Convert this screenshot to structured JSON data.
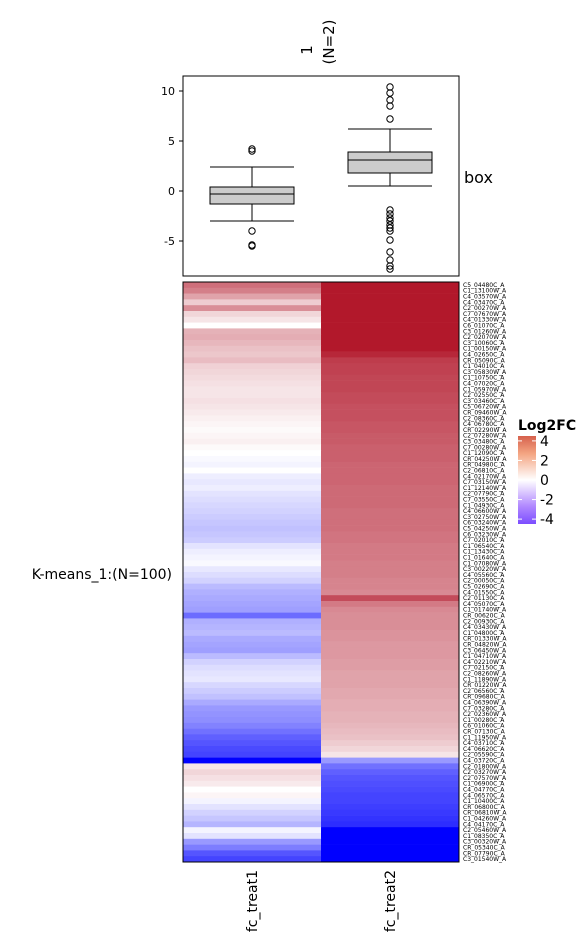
{
  "chart_data": [
    {
      "type": "box",
      "column_title": "1\n(N=2)",
      "row_label": "box",
      "categories": [
        "fc_treat1",
        "fc_treat2"
      ],
      "ylim": [
        -8.5,
        11.5
      ],
      "yticks": [
        10,
        5,
        0,
        -5
      ],
      "boxes": [
        {
          "name": "fc_treat1",
          "q1": -1.3,
          "median": -0.3,
          "q3": 0.4,
          "whisker_low": -3.0,
          "whisker_high": 2.4,
          "outliers": [
            4.2,
            4.0,
            -4.0,
            -5.4,
            -5.5
          ]
        },
        {
          "name": "fc_treat2",
          "q1": 1.8,
          "median": 3.1,
          "q3": 3.9,
          "whisker_low": 0.5,
          "whisker_high": 6.2,
          "outliers": [
            10.4,
            9.8,
            9.1,
            8.5,
            7.2,
            -1.9,
            -2.3,
            -2.7,
            -3.0,
            -3.4,
            -3.7,
            -4.0,
            -4.9,
            -6.1,
            -6.9,
            -7.5,
            -7.8
          ]
        }
      ]
    },
    {
      "type": "heatmap",
      "row_group_label": "K-means_1:(N=100)",
      "columns": [
        "fc_treat1",
        "fc_treat2"
      ],
      "legend": {
        "title": "Log2FC",
        "ticks": [
          4,
          2,
          0,
          -2,
          -4
        ],
        "range": [
          -4.5,
          4.5
        ],
        "high_color": "#B2182B",
        "mid_color": "#FFFFFF",
        "low_color": "#0000FF"
      },
      "rows": [
        "C5_04480C_A",
        "C1_13100W_A",
        "C4_03570W_A",
        "C4_03470C_A",
        "C2_00270W_A",
        "C7_07670W_A",
        "C4_01330W_A",
        "C6_01070C_A",
        "C3_01260W_A",
        "C2_02070W_A",
        "C3_10060C_A",
        "C1_00150W_A",
        "C4_02650C_A",
        "CR_05090C_A",
        "C1_04010C_A",
        "C3_05830W_A",
        "C1_10750C_A",
        "C4_07020C_A",
        "C1_05970W_A",
        "C2_02550C_A",
        "C3_03460C_A",
        "C5_06720W_A",
        "CR_09460W_A",
        "C2_08360C_A",
        "C4_06780C_A",
        "CR_02290W_A",
        "C2_07280W_A",
        "C3_03480C_A",
        "C7_00280W_A",
        "C1_12090C_A",
        "CR_04250W_A",
        "CR_04980C_A",
        "C2_06810C_A",
        "C4_02170W_A",
        "C7_03150W_A",
        "C1_12140W_A",
        "C2_07790C_A",
        "C7_03550C_A",
        "C1_04930C_A",
        "C4_06600W_A",
        "C3_02750W_A",
        "C6_03240W_A",
        "C5_04250W_A",
        "C6_03230W_A",
        "C7_02010C_A",
        "C1_06540C_A",
        "C1_13430C_A",
        "C1_01640C_A",
        "C1_07080W_A",
        "C3_00220W_A",
        "C4_05560C_A",
        "C2_00050C_A",
        "C5_02690C_A",
        "C4_01550C_A",
        "C2_01130C_A",
        "C4_05070C_A",
        "C1_01740W_A",
        "CR_00620C_A",
        "C2_00930C_A",
        "C4_03430W_A",
        "C1_04800C_A",
        "CR_01330W_A",
        "CR_04820W_A",
        "C3_06450W_A",
        "C1_04710W_A",
        "C4_02210W_A",
        "C7_02150C_A",
        "C2_08260W_A",
        "C1_11890W_A",
        "CR_01220W_A",
        "C2_06560C_A",
        "CR_09680C_A",
        "C4_06390W_A",
        "C7_03280C_A",
        "C2_02360W_A",
        "C1_00280C_A",
        "C6_01060C_A",
        "CR_07130C_A",
        "C1_11950W_A",
        "C4_03710C_A",
        "C4_06620C_A",
        "C2_05590C_A",
        "C4_03720C_A",
        "C2_01800W_A",
        "C2_03270W_A",
        "C2_07570W_A",
        "C1_06900C_A",
        "C4_04770C_A",
        "C4_06570C_A",
        "C1_10400C_A",
        "CR_06800C_A",
        "CR_06810W_A",
        "C1_04260W_A",
        "C4_04170C_A",
        "C2_05460W_A",
        "C1_08350C_A",
        "C3_00320W_A",
        "CR_05340C_A",
        "CR_07790C_A",
        "C3_01540W_A"
      ],
      "values": [
        [
          2.8,
          4.5
        ],
        [
          2.5,
          4.5
        ],
        [
          1.8,
          4.5
        ],
        [
          1.0,
          4.5
        ],
        [
          2.2,
          4.5
        ],
        [
          0.8,
          4.5
        ],
        [
          0.5,
          4.5
        ],
        [
          0.0,
          4.5
        ],
        [
          1.5,
          4.5
        ],
        [
          1.6,
          4.5
        ],
        [
          1.4,
          4.5
        ],
        [
          1.2,
          4.5
        ],
        [
          1.1,
          4.2
        ],
        [
          1.3,
          3.8
        ],
        [
          0.9,
          3.7
        ],
        [
          0.8,
          3.7
        ],
        [
          0.7,
          3.6
        ],
        [
          0.6,
          3.6
        ],
        [
          0.5,
          3.6
        ],
        [
          0.5,
          3.5
        ],
        [
          0.6,
          3.5
        ],
        [
          0.5,
          3.4
        ],
        [
          0.4,
          3.4
        ],
        [
          0.3,
          3.4
        ],
        [
          0.2,
          3.3
        ],
        [
          0.1,
          3.3
        ],
        [
          0.2,
          3.2
        ],
        [
          0.3,
          3.2
        ],
        [
          0.1,
          3.1
        ],
        [
          0.0,
          3.1
        ],
        [
          -0.1,
          3.1
        ],
        [
          -0.2,
          3.0
        ],
        [
          0.0,
          3.0
        ],
        [
          -0.3,
          3.0
        ],
        [
          -0.4,
          3.0
        ],
        [
          -0.3,
          2.9
        ],
        [
          -0.5,
          2.9
        ],
        [
          -0.6,
          2.9
        ],
        [
          -0.7,
          2.9
        ],
        [
          -0.8,
          2.8
        ],
        [
          -0.9,
          2.8
        ],
        [
          -1.0,
          2.8
        ],
        [
          -1.1,
          2.8
        ],
        [
          -1.0,
          2.7
        ],
        [
          -0.9,
          2.7
        ],
        [
          -0.5,
          2.6
        ],
        [
          -0.3,
          2.6
        ],
        [
          -0.2,
          2.6
        ],
        [
          -0.1,
          2.5
        ],
        [
          -0.4,
          2.5
        ],
        [
          -0.6,
          2.5
        ],
        [
          -0.8,
          2.4
        ],
        [
          -1.2,
          2.4
        ],
        [
          -1.4,
          2.3
        ],
        [
          -1.5,
          3.5
        ],
        [
          -1.6,
          2.6
        ],
        [
          -1.7,
          2.3
        ],
        [
          -2.6,
          2.2
        ],
        [
          -1.4,
          2.2
        ],
        [
          -1.3,
          2.2
        ],
        [
          -1.2,
          2.1
        ],
        [
          -1.5,
          2.1
        ],
        [
          -1.6,
          2.0
        ],
        [
          -1.7,
          2.0
        ],
        [
          -1.2,
          2.0
        ],
        [
          -0.8,
          1.9
        ],
        [
          -0.6,
          1.9
        ],
        [
          -0.5,
          1.8
        ],
        [
          -0.4,
          1.8
        ],
        [
          -0.7,
          1.8
        ],
        [
          -0.9,
          1.7
        ],
        [
          -1.1,
          1.7
        ],
        [
          -1.5,
          1.6
        ],
        [
          -1.8,
          1.6
        ],
        [
          -1.9,
          1.5
        ],
        [
          -2.0,
          1.5
        ],
        [
          -2.2,
          1.4
        ],
        [
          -2.5,
          1.3
        ],
        [
          -2.8,
          1.2
        ],
        [
          -3.0,
          1.0
        ],
        [
          -3.2,
          0.8
        ],
        [
          -3.3,
          0.5
        ],
        [
          -4.5,
          -1.8
        ],
        [
          0.5,
          -2.5
        ],
        [
          0.8,
          -2.8
        ],
        [
          0.6,
          -3.0
        ],
        [
          0.4,
          -3.1
        ],
        [
          0.0,
          -3.2
        ],
        [
          0.2,
          -3.3
        ],
        [
          -0.2,
          -3.3
        ],
        [
          -0.5,
          -3.4
        ],
        [
          -0.8,
          -3.5
        ],
        [
          -1.0,
          -3.6
        ],
        [
          -1.3,
          -3.7
        ],
        [
          -0.2,
          -4.5
        ],
        [
          -0.5,
          -4.5
        ],
        [
          -1.8,
          -4.5
        ],
        [
          -2.3,
          -4.5
        ],
        [
          -3.0,
          -4.5
        ],
        [
          -3.3,
          -4.5
        ]
      ]
    }
  ]
}
